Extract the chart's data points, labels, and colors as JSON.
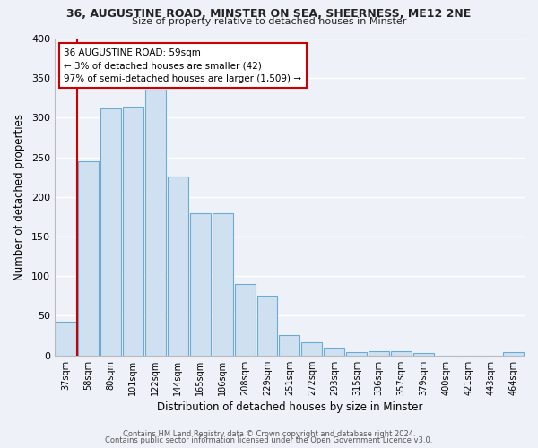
{
  "title1": "36, AUGUSTINE ROAD, MINSTER ON SEA, SHEERNESS, ME12 2NE",
  "title2": "Size of property relative to detached houses in Minster",
  "xlabel": "Distribution of detached houses by size in Minster",
  "ylabel": "Number of detached properties",
  "bin_labels": [
    "37sqm",
    "58sqm",
    "80sqm",
    "101sqm",
    "122sqm",
    "144sqm",
    "165sqm",
    "186sqm",
    "208sqm",
    "229sqm",
    "251sqm",
    "272sqm",
    "293sqm",
    "315sqm",
    "336sqm",
    "357sqm",
    "379sqm",
    "400sqm",
    "421sqm",
    "443sqm",
    "464sqm"
  ],
  "bar_heights": [
    43,
    245,
    312,
    314,
    335,
    226,
    180,
    180,
    90,
    75,
    26,
    17,
    10,
    4,
    5,
    5,
    3,
    0,
    0,
    0,
    4
  ],
  "bar_color": "#cfe0f0",
  "bar_edge_color": "#6aaad4",
  "vline_color": "#cc0000",
  "ylim": [
    0,
    400
  ],
  "yticks": [
    0,
    50,
    100,
    150,
    200,
    250,
    300,
    350,
    400
  ],
  "annotation_title": "36 AUGUSTINE ROAD: 59sqm",
  "annotation_line1": "← 3% of detached houses are smaller (42)",
  "annotation_line2": "97% of semi-detached houses are larger (1,509) →",
  "annotation_box_color": "#ffffff",
  "annotation_box_edge": "#cc0000",
  "footer1": "Contains HM Land Registry data © Crown copyright and database right 2024.",
  "footer2": "Contains public sector information licensed under the Open Government Licence v3.0.",
  "bg_color": "#eef2f8",
  "plot_bg_color": "#eef2f8",
  "grid_color": "#ffffff"
}
